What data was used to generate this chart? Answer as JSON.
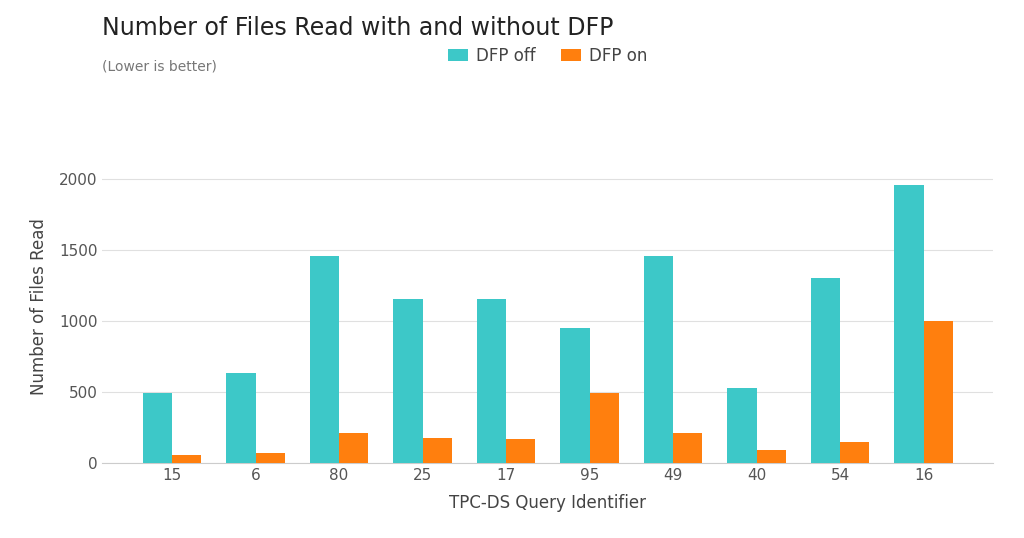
{
  "title": "Number of Files Read with and without DFP",
  "subtitle": "(Lower is better)",
  "xlabel": "TPC-DS Query Identifier",
  "ylabel": "Number of Files Read",
  "queries": [
    "15",
    "6",
    "80",
    "25",
    "17",
    "95",
    "49",
    "40",
    "54",
    "16"
  ],
  "dfp_off": [
    490,
    635,
    1455,
    1155,
    1155,
    950,
    1455,
    525,
    1300,
    1960
  ],
  "dfp_on": [
    55,
    65,
    210,
    175,
    170,
    490,
    210,
    90,
    145,
    1000
  ],
  "color_off": "#3DC8C8",
  "color_on": "#FF7F0E",
  "legend_labels": [
    "DFP off",
    "DFP on"
  ],
  "ylim": [
    0,
    2200
  ],
  "yticks": [
    0,
    500,
    1000,
    1500,
    2000
  ],
  "bg_color": "#FFFFFF",
  "grid_color": "#E0E0E0",
  "title_fontsize": 17,
  "subtitle_fontsize": 10,
  "label_fontsize": 12,
  "tick_fontsize": 11,
  "legend_fontsize": 12,
  "bar_width": 0.35
}
